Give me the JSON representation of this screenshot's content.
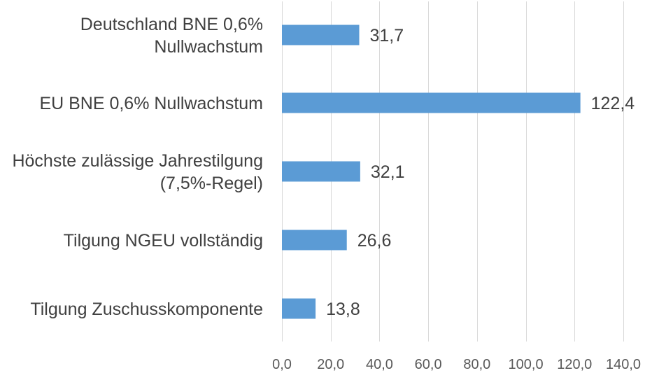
{
  "chart_data": {
    "type": "bar",
    "orientation": "horizontal",
    "categories": [
      [
        "Deutschland BNE 0,6%",
        "Nullwachstum"
      ],
      [
        "EU BNE 0,6% Nullwachstum"
      ],
      [
        "Höchste zulässige Jahrestilgung",
        "(7,5%-Regel)"
      ],
      [
        "Tilgung NGEU vollständig"
      ],
      [
        "Tilgung Zuschusskomponente"
      ]
    ],
    "values": [
      31.7,
      122.4,
      32.1,
      26.6,
      13.8
    ],
    "value_labels": [
      "31,7",
      "122,4",
      "32,1",
      "26,6",
      "13,8"
    ],
    "xlim": [
      0,
      140
    ],
    "xticks": [
      0,
      20,
      40,
      60,
      80,
      100,
      120,
      140
    ],
    "xtick_labels": [
      "0,0",
      "20,0",
      "40,0",
      "60,0",
      "80,0",
      "100,0",
      "120,0",
      "140,0"
    ],
    "grid": "vertical",
    "legend": "none",
    "bar_color": "#5b9bd5",
    "grid_color": "#d9d9d9"
  }
}
